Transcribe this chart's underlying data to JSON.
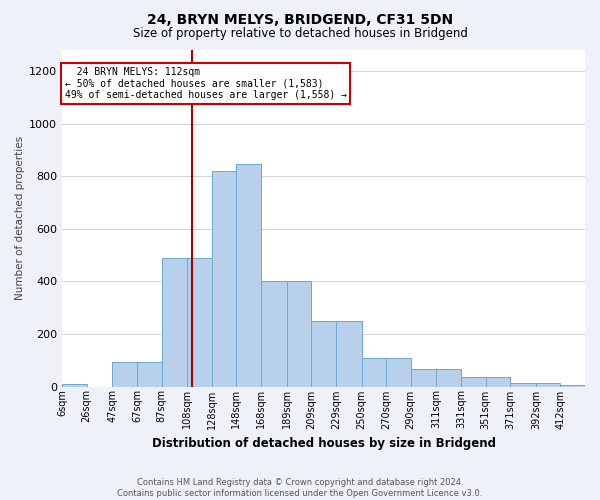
{
  "title1": "24, BRYN MELYS, BRIDGEND, CF31 5DN",
  "title2": "Size of property relative to detached houses in Bridgend",
  "xlabel": "Distribution of detached houses by size in Bridgend",
  "ylabel": "Number of detached properties",
  "bar_labels": [
    "6sqm",
    "26sqm",
    "47sqm",
    "67sqm",
    "87sqm",
    "108sqm",
    "128sqm",
    "148sqm",
    "168sqm",
    "189sqm",
    "209sqm",
    "229sqm",
    "250sqm",
    "270sqm",
    "290sqm",
    "311sqm",
    "331sqm",
    "351sqm",
    "371sqm",
    "392sqm",
    "412sqm"
  ],
  "bar_values": [
    10,
    0,
    95,
    95,
    490,
    490,
    820,
    845,
    400,
    400,
    250,
    250,
    110,
    110,
    65,
    65,
    35,
    35,
    15,
    15,
    5
  ],
  "bar_edges": [
    6,
    26,
    47,
    67,
    87,
    108,
    128,
    148,
    168,
    189,
    209,
    229,
    250,
    270,
    290,
    311,
    331,
    351,
    371,
    392,
    412,
    432
  ],
  "bar_color": "#b8d0ea",
  "bar_edge_color": "#6aaad4",
  "vline_x": 112,
  "vline_color": "#aa0000",
  "annotation_text": "  24 BRYN MELYS: 112sqm  \n← 50% of detached houses are smaller (1,583)\n49% of semi-detached houses are larger (1,558) →",
  "annotation_box_color": "#ffffff",
  "annotation_box_edge_color": "#cc0000",
  "ylim": [
    0,
    1280
  ],
  "yticks": [
    0,
    200,
    400,
    600,
    800,
    1000,
    1200
  ],
  "footnote": "Contains HM Land Registry data © Crown copyright and database right 2024.\nContains public sector information licensed under the Open Government Licence v3.0.",
  "bg_color": "#eef2f8",
  "plot_bg_color": "#ffffff",
  "title1_fontsize": 10,
  "title2_fontsize": 8.5,
  "xlabel_fontsize": 8.5,
  "ylabel_fontsize": 7.5,
  "tick_fontsize": 7,
  "footnote_fontsize": 6
}
